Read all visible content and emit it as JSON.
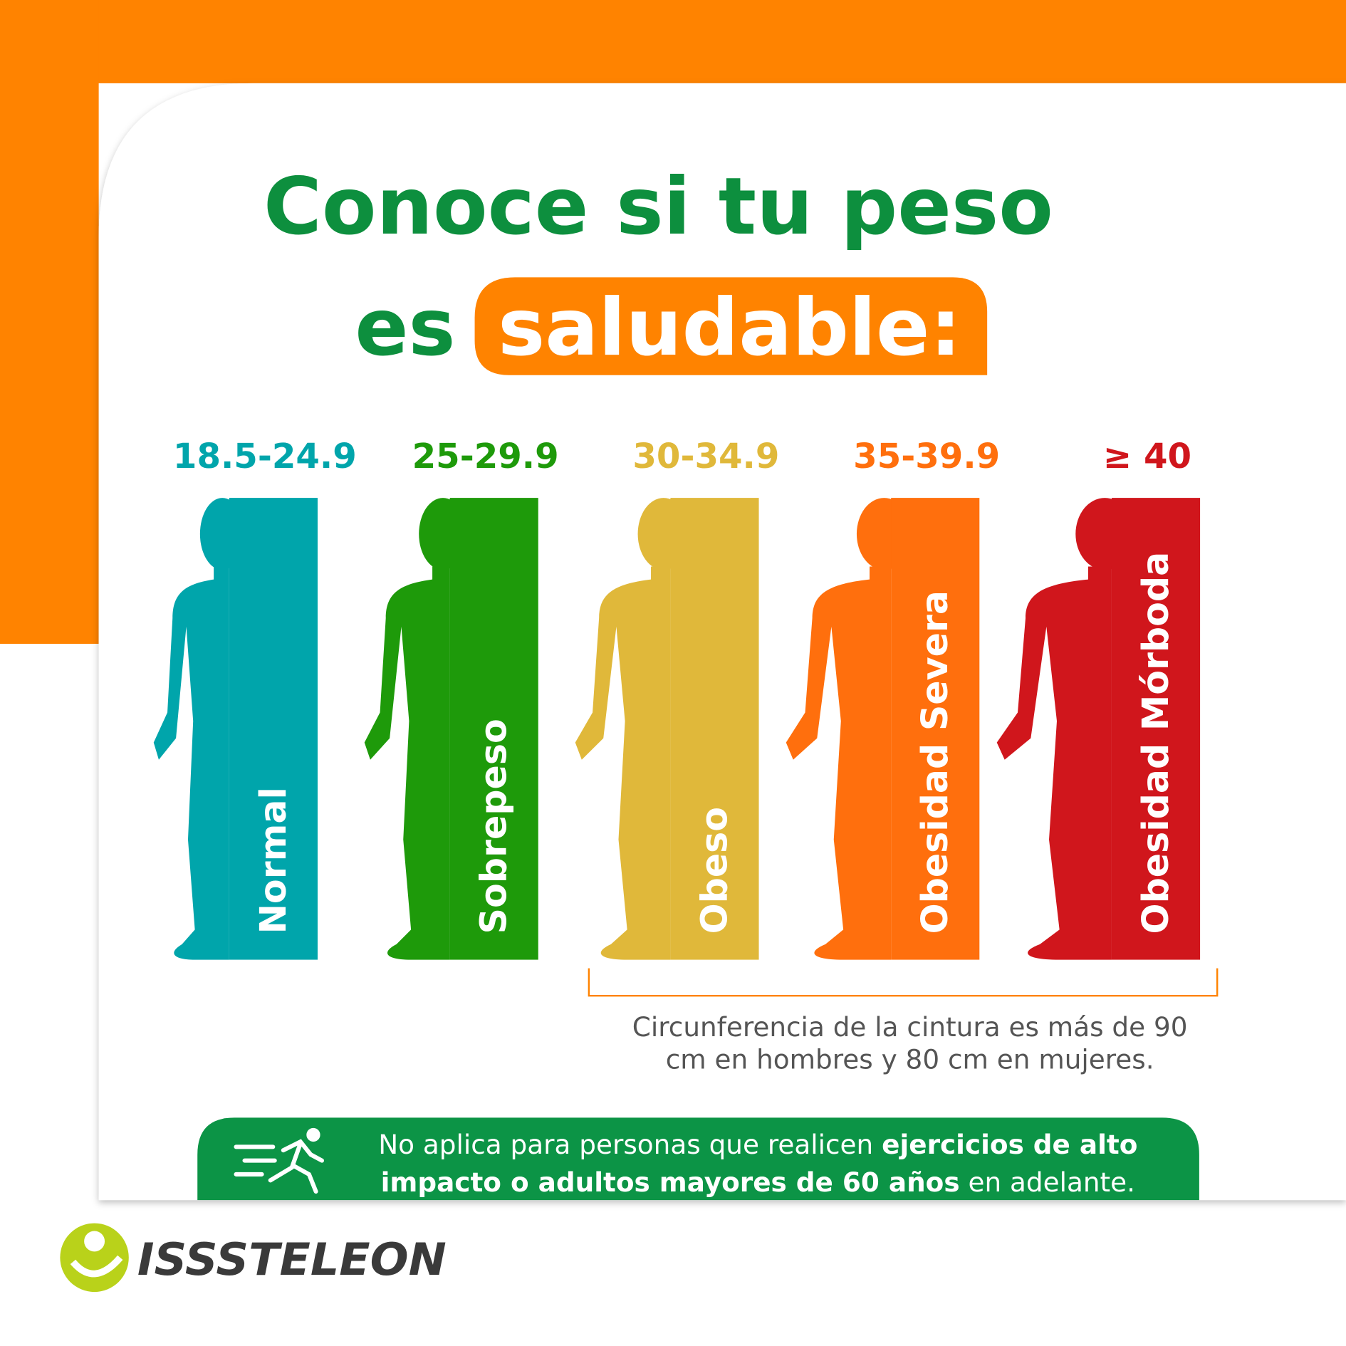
{
  "title": {
    "line1": "Conoce si tu peso",
    "line2": "es",
    "highlight": "saludable:"
  },
  "categories": [
    {
      "range": "18.5-24.9",
      "label": "Normal",
      "color": "#00a5ab"
    },
    {
      "range": "25-29.9",
      "label": "Sobrepeso",
      "color": "#1e9a0a"
    },
    {
      "range": "30-34.9",
      "label": "Obeso",
      "color": "#e0b83a"
    },
    {
      "range": "35-39.9",
      "label": "Obesidad Severa",
      "color": "#ff6f0d"
    },
    {
      "range": "≥ 40",
      "label": "Obesidad Mórboda",
      "color": "#d0161c"
    }
  ],
  "note": {
    "lines": [
      "Circunferencia de la cintura es más de 90",
      "cm en hombres y 80 cm en mujeres."
    ]
  },
  "footer": {
    "lines": [
      [
        {
          "text": "No aplica para personas que realicen ",
          "bold": false
        },
        {
          "text": "ejercicios de alto",
          "bold": true
        }
      ],
      [
        {
          "text": "impacto o adultos mayores de 60 años",
          "bold": true
        },
        {
          "text": " en adelante.",
          "bold": false
        }
      ]
    ]
  },
  "logo": "ISSSTELEON"
}
